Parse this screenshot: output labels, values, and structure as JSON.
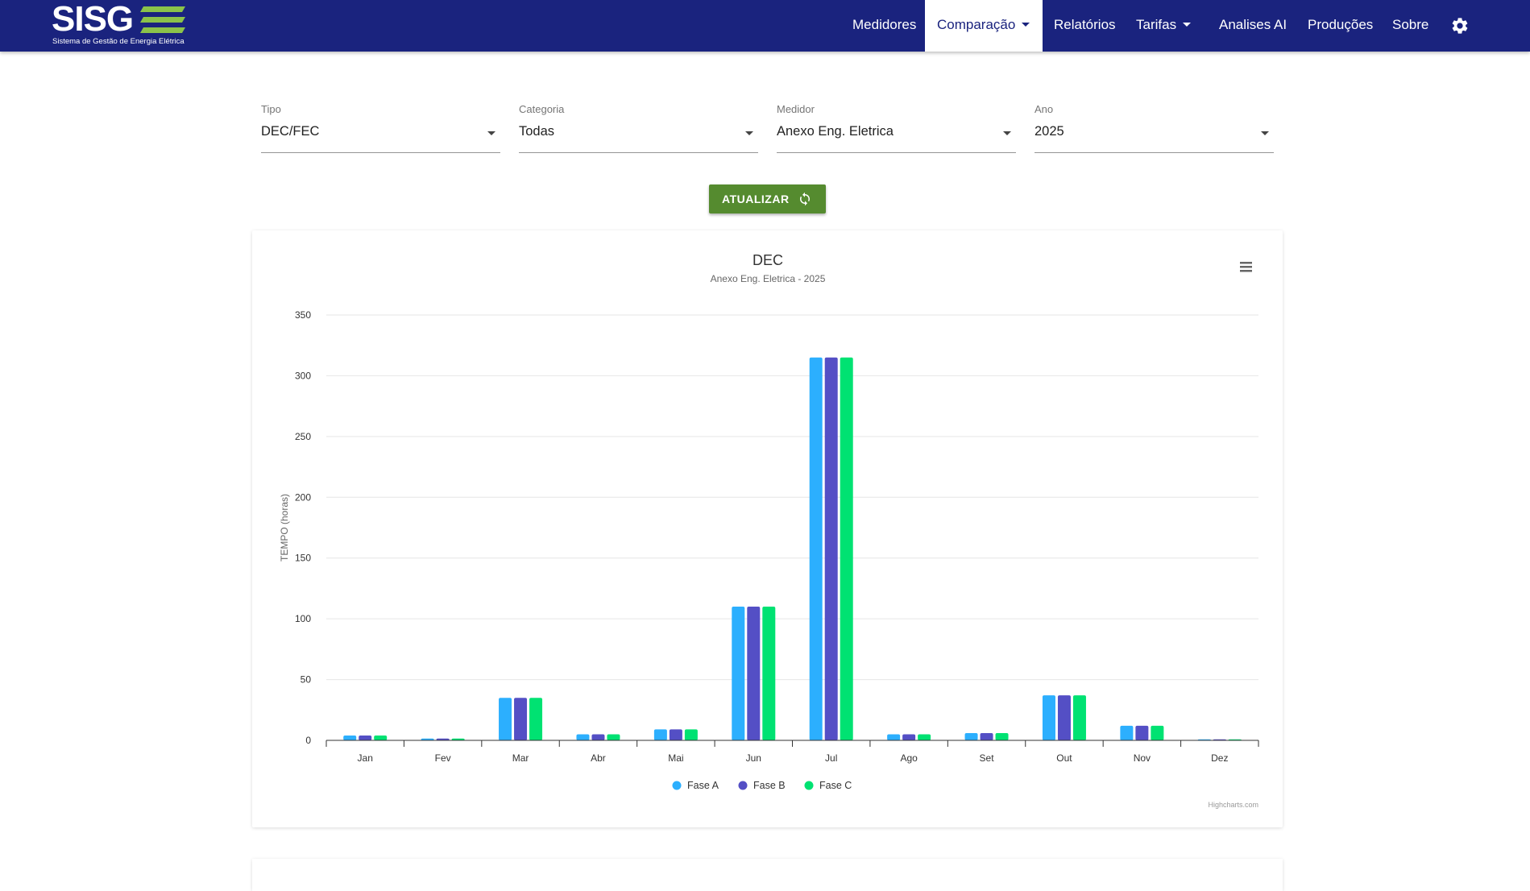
{
  "logo": {
    "text": "SISG",
    "subtitle": "Sistema de Gestão de Energia Elétrica"
  },
  "nav": {
    "items": [
      {
        "label": "Medidores"
      },
      {
        "label": "Comparação",
        "dropdown": true,
        "active": true
      },
      {
        "label": "Relatórios"
      },
      {
        "label": "Tarifas",
        "dropdown": true
      },
      {
        "label": "Analises AI"
      },
      {
        "label": "Produções"
      },
      {
        "label": "Sobre"
      }
    ],
    "settings_icon": "gear-icon"
  },
  "filters": {
    "tipo": {
      "label": "Tipo",
      "value": "DEC/FEC"
    },
    "categoria": {
      "label": "Categoria",
      "value": "Todas"
    },
    "medidor": {
      "label": "Medidor",
      "value": "Anexo Eng. Eletrica"
    },
    "ano": {
      "label": "Ano",
      "value": "2025"
    }
  },
  "update_button": {
    "label": "ATUALIZAR",
    "icon": "refresh-icon"
  },
  "chart_menu_icon": "menu-icon",
  "chart_credits": "Highcharts.com",
  "colors": {
    "navbar": "#1a237e",
    "button": "#558b2f",
    "fase_a": "#2caffe",
    "fase_b": "#544fc5",
    "fase_c": "#00e272"
  },
  "chart_data": {
    "type": "bar",
    "title": "DEC",
    "subtitle": "Anexo Eng. Eletrica - 2025",
    "xlabel": "",
    "ylabel": "TEMPO (horas)",
    "ylim": [
      0,
      350
    ],
    "yticks": [
      0,
      50,
      100,
      150,
      200,
      250,
      300,
      350
    ],
    "grid": true,
    "legend": "bottom-center",
    "categories": [
      "Jan",
      "Fev",
      "Mar",
      "Abr",
      "Mai",
      "Jun",
      "Jul",
      "Ago",
      "Set",
      "Out",
      "Nov",
      "Dez"
    ],
    "series": [
      {
        "name": "Fase A",
        "color": "#2caffe",
        "values": [
          4,
          1.5,
          35,
          5,
          9,
          110,
          315,
          5,
          6,
          37,
          12,
          0.8
        ]
      },
      {
        "name": "Fase B",
        "color": "#544fc5",
        "values": [
          4,
          1.5,
          35,
          5,
          9,
          110,
          315,
          5,
          6,
          37,
          12,
          0.8
        ]
      },
      {
        "name": "Fase C",
        "color": "#00e272",
        "values": [
          4,
          1.5,
          35,
          5,
          9,
          110,
          315,
          5,
          6,
          37,
          12,
          0.8
        ]
      }
    ]
  }
}
